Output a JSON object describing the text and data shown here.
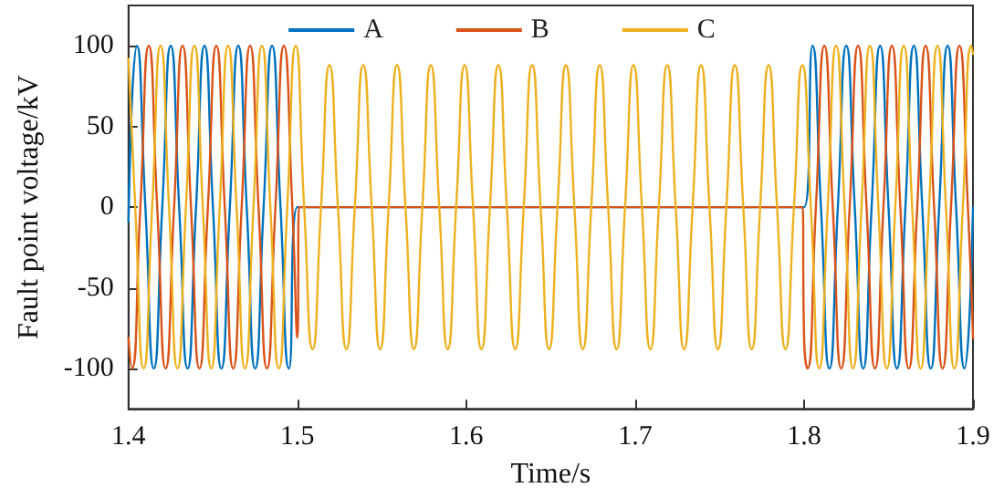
{
  "chart_data": {
    "type": "line",
    "xlabel": "Time/s",
    "ylabel": "Fault point voltage/kV",
    "xlim": [
      1.4,
      1.9
    ],
    "xticks": [
      1.4,
      1.5,
      1.6,
      1.7,
      1.8,
      1.9
    ],
    "ylim": [
      -125,
      125
    ],
    "yticks": [
      -100,
      -50,
      0,
      50,
      100
    ],
    "grid": false,
    "legend": "top",
    "marker": "none",
    "line_style": "solid",
    "series": [
      {
        "name": "A",
        "color": "#0072bd",
        "x": [
          1.4,
          1.405,
          1.41,
          1.415,
          1.42,
          1.425,
          1.43,
          1.435,
          1.44,
          1.445,
          1.45,
          1.455,
          1.46,
          1.465,
          1.47,
          1.475,
          1.48,
          1.485,
          1.49,
          1.495,
          1.5,
          1.8,
          1.805,
          1.81,
          1.815,
          1.82,
          1.825,
          1.83,
          1.835,
          1.84,
          1.845,
          1.85,
          1.855,
          1.86,
          1.865,
          1.87,
          1.875,
          1.88,
          1.885,
          1.89,
          1.895,
          1.9
        ],
        "values": [
          -9,
          100,
          0,
          -100,
          0,
          100,
          0,
          -100,
          0,
          100,
          0,
          -100,
          0,
          100,
          0,
          -100,
          0,
          100,
          0,
          -100,
          0,
          0,
          100,
          0,
          -100,
          0,
          100,
          0,
          -100,
          0,
          100,
          0,
          -100,
          0,
          100,
          0,
          -100,
          0,
          100,
          0,
          -100,
          0
        ]
      },
      {
        "name": "B",
        "color": "#d95319",
        "x": [
          1.4,
          1.402,
          1.407,
          1.412,
          1.417,
          1.422,
          1.427,
          1.432,
          1.437,
          1.442,
          1.447,
          1.452,
          1.457,
          1.462,
          1.467,
          1.472,
          1.477,
          1.482,
          1.487,
          1.492,
          1.497,
          1.5,
          1.501,
          1.799,
          1.8,
          1.802,
          1.807,
          1.812,
          1.817,
          1.822,
          1.827,
          1.832,
          1.837,
          1.842,
          1.847,
          1.852,
          1.857,
          1.862,
          1.867,
          1.872,
          1.877,
          1.882,
          1.887,
          1.892,
          1.897,
          1.9
        ],
        "values": [
          -81,
          -100,
          0,
          100,
          0,
          -100,
          0,
          100,
          0,
          -100,
          0,
          100,
          0,
          -100,
          0,
          100,
          0,
          -100,
          0,
          100,
          0,
          -81,
          0,
          0,
          -81,
          -100,
          0,
          100,
          0,
          -100,
          0,
          100,
          0,
          -100,
          0,
          100,
          0,
          -100,
          0,
          100,
          0,
          -100,
          0,
          100,
          0,
          -81
        ]
      },
      {
        "name": "C",
        "color": "#edb120",
        "x": [
          1.4,
          1.404,
          1.409,
          1.414,
          1.419,
          1.424,
          1.429,
          1.434,
          1.439,
          1.444,
          1.449,
          1.454,
          1.459,
          1.464,
          1.469,
          1.474,
          1.479,
          1.484,
          1.489,
          1.494,
          1.499,
          1.504,
          1.509,
          1.514,
          1.519,
          1.524,
          1.529,
          1.534,
          1.539,
          1.544,
          1.549,
          1.554,
          1.559,
          1.564,
          1.569,
          1.574,
          1.579,
          1.584,
          1.589,
          1.594,
          1.599,
          1.604,
          1.609,
          1.614,
          1.619,
          1.624,
          1.629,
          1.634,
          1.639,
          1.644,
          1.649,
          1.654,
          1.659,
          1.664,
          1.669,
          1.674,
          1.679,
          1.684,
          1.689,
          1.694,
          1.699,
          1.704,
          1.709,
          1.714,
          1.719,
          1.724,
          1.729,
          1.734,
          1.739,
          1.744,
          1.749,
          1.754,
          1.759,
          1.764,
          1.769,
          1.774,
          1.779,
          1.784,
          1.789,
          1.794,
          1.799,
          1.804,
          1.809,
          1.814,
          1.819,
          1.824,
          1.829,
          1.834,
          1.839,
          1.844,
          1.849,
          1.854,
          1.859,
          1.864,
          1.869,
          1.874,
          1.879,
          1.884,
          1.889,
          1.894,
          1.899,
          1.9
        ],
        "values": [
          92,
          0,
          -100,
          0,
          100,
          0,
          -100,
          0,
          100,
          0,
          -100,
          0,
          100,
          0,
          -100,
          0,
          100,
          0,
          -100,
          0,
          100,
          0,
          -88,
          0,
          88,
          0,
          -88,
          0,
          88,
          0,
          -88,
          0,
          88,
          0,
          -88,
          0,
          88,
          0,
          -88,
          0,
          88,
          0,
          -88,
          0,
          88,
          0,
          -88,
          0,
          88,
          0,
          -88,
          0,
          88,
          0,
          -88,
          0,
          88,
          0,
          -88,
          0,
          88,
          0,
          -88,
          0,
          88,
          0,
          -88,
          0,
          88,
          0,
          -88,
          0,
          88,
          0,
          -88,
          0,
          88,
          0,
          -88,
          0,
          88,
          0,
          -100,
          0,
          100,
          0,
          -100,
          0,
          100,
          0,
          -100,
          0,
          100,
          0,
          -100,
          0,
          100,
          0,
          -100,
          0,
          100,
          95
        ]
      }
    ]
  }
}
